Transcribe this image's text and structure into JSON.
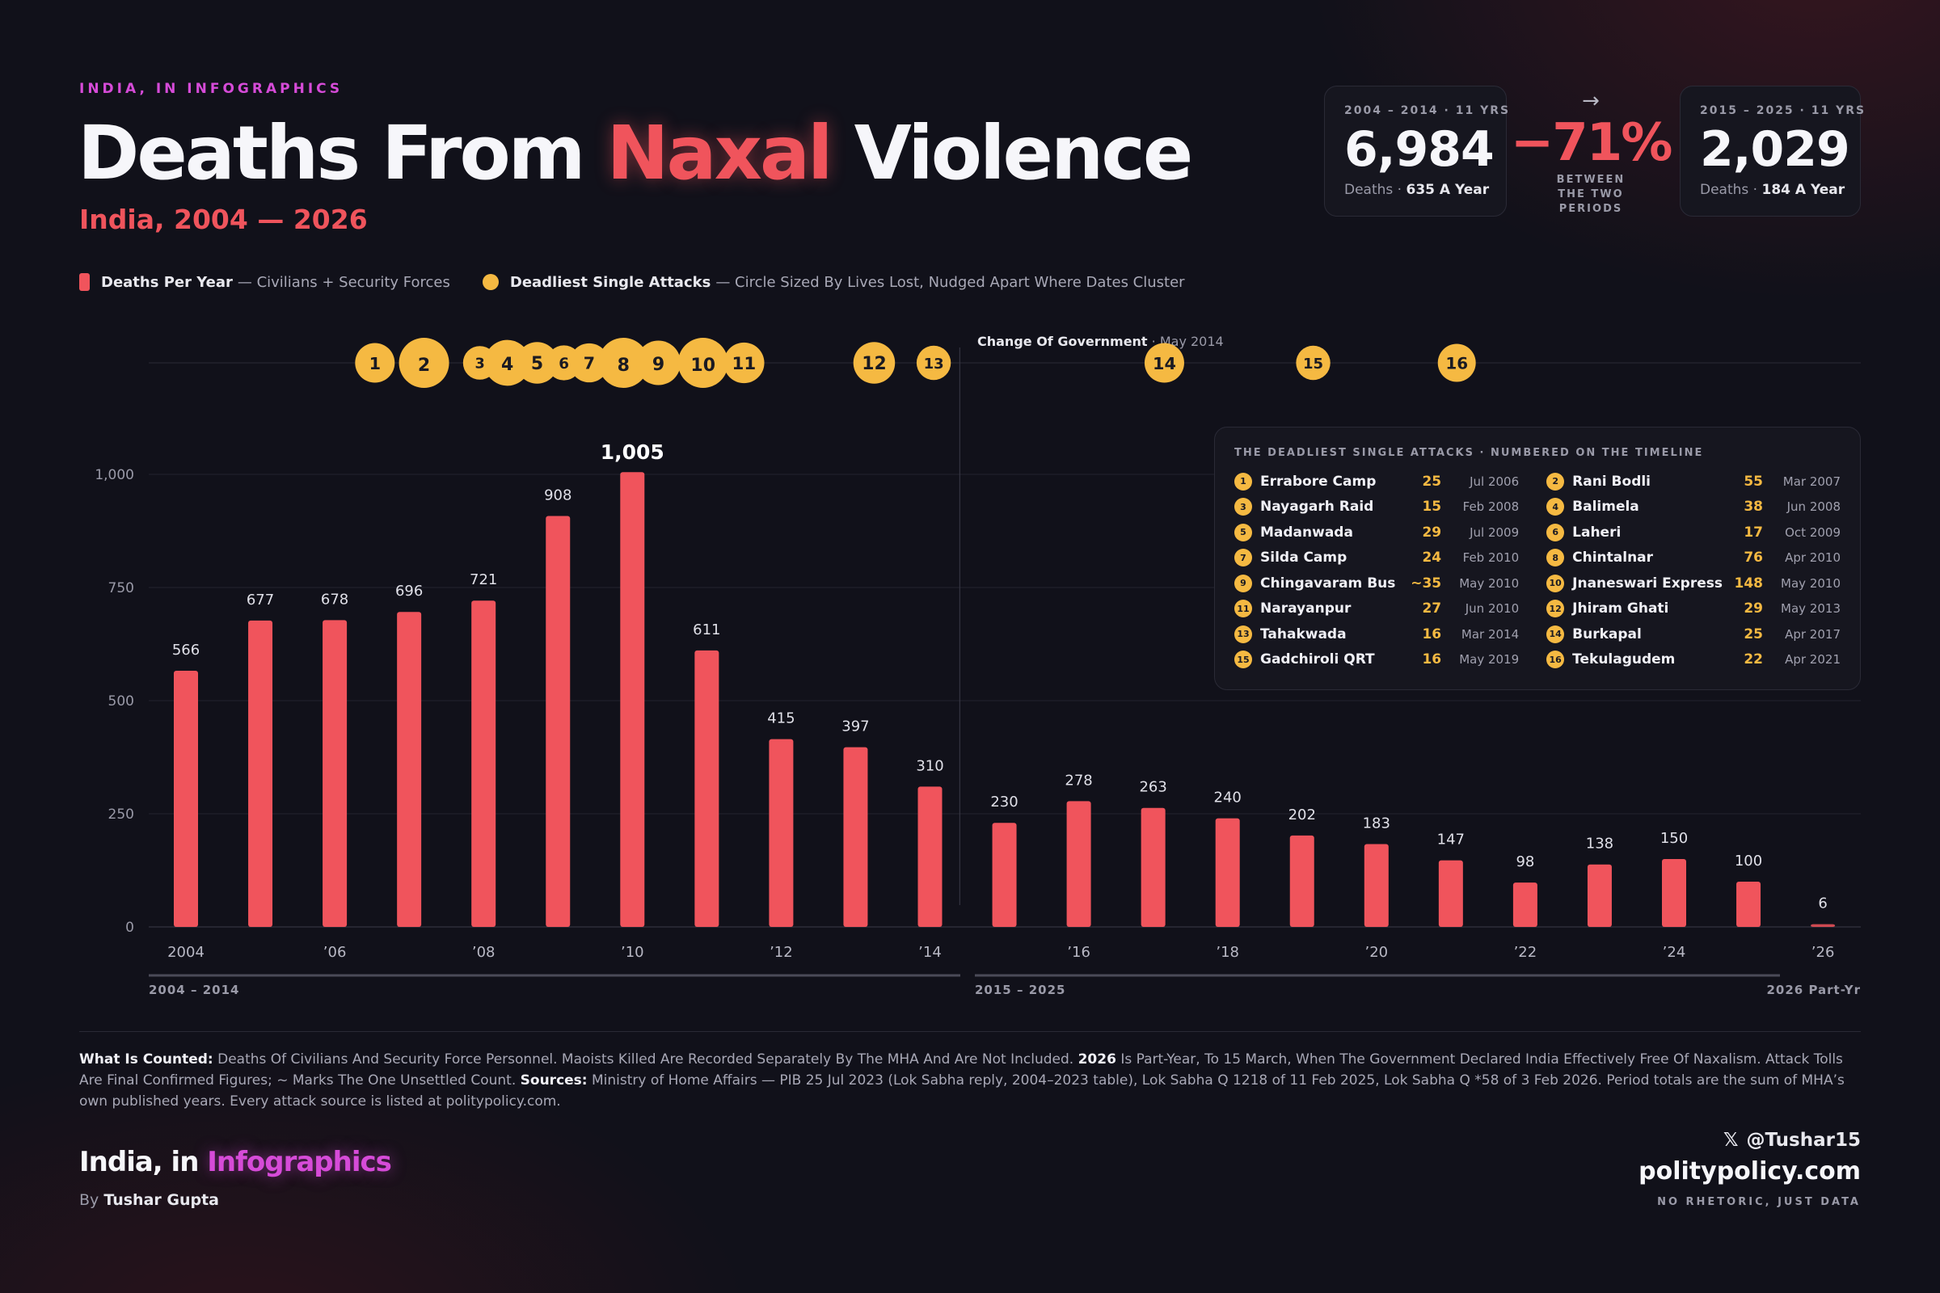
{
  "header": {
    "kicker": "INDIA, IN INFOGRAPHICS",
    "title_pre": "Deaths From ",
    "title_hl": "Naxal",
    "title_post": " Violence",
    "subtitle": "India, 2004 — 2026"
  },
  "stats": {
    "period1": {
      "label": "2004 – 2014 · 11 YRS",
      "value": "6,984",
      "cap_pre": "Deaths · ",
      "cap_bold": "635 A Year"
    },
    "change": {
      "arrow": "→",
      "pct": "−71%",
      "cap": "BETWEEN THE TWO PERIODS"
    },
    "period2": {
      "label": "2015 – 2025 · 11 YRS",
      "value": "2,029",
      "cap_pre": "Deaths · ",
      "cap_bold": "184 A Year"
    }
  },
  "legend": {
    "bars_bold": "Deaths Per Year",
    "bars_text": "— Civilians + Security Forces",
    "circles_bold": "Deadliest Single Attacks",
    "circles_text": "— Circle Sized By Lives Lost, Nudged Apart Where Dates Cluster"
  },
  "chart_data": {
    "type": "bar",
    "title": "Deaths From Naxal Violence",
    "subtitle": "India, 2004 — 2026",
    "categories": [
      "2004",
      "2005",
      "2006",
      "2007",
      "2008",
      "2009",
      "2010",
      "2011",
      "2012",
      "2013",
      "2014",
      "2015",
      "2016",
      "2017",
      "2018",
      "2019",
      "2020",
      "2021",
      "2022",
      "2023",
      "2024",
      "2025",
      "2026"
    ],
    "values": [
      566,
      677,
      678,
      696,
      721,
      908,
      1005,
      611,
      415,
      397,
      310,
      230,
      278,
      263,
      240,
      202,
      183,
      147,
      98,
      138,
      150,
      100,
      6
    ],
    "x_tick_labels": [
      "2004",
      "’06",
      "’08",
      "’10",
      "’12",
      "’14",
      "’16",
      "’18",
      "’20",
      "’22",
      "’24",
      "’26"
    ],
    "x_tick_years": [
      2004,
      2006,
      2008,
      2010,
      2012,
      2014,
      2016,
      2018,
      2020,
      2022,
      2024,
      2026
    ],
    "y_ticks": [
      0,
      250,
      500,
      750,
      "1,000"
    ],
    "ylim": [
      0,
      1000
    ],
    "highlight_max_label": "1,005",
    "grid": true,
    "partial_year": "2026",
    "bar_color": "#f0545c",
    "annotation": {
      "bold": "Change Of Government",
      "text": " · May 2014",
      "at": 2014.4
    },
    "periods": [
      {
        "label": "2004 – 2014",
        "from": 2004,
        "to": 2014
      },
      {
        "label": "2015 – 2025",
        "from": 2015,
        "to": 2025
      },
      {
        "label": "2026 Part-Yr",
        "from": 2026,
        "to": 2026
      }
    ],
    "attacks": [
      {
        "n": 1,
        "name": "Errabore Camp",
        "deaths": 25,
        "count_text": "25",
        "date": "Jul 2006",
        "t": 2006.54
      },
      {
        "n": 2,
        "name": "Rani Bodli",
        "deaths": 55,
        "count_text": "55",
        "date": "Mar 2007",
        "t": 2007.2
      },
      {
        "n": 3,
        "name": "Nayagarh Raid",
        "deaths": 15,
        "count_text": "15",
        "date": "Feb 2008",
        "t": 2007.95
      },
      {
        "n": 4,
        "name": "Balimela",
        "deaths": 38,
        "count_text": "38",
        "date": "Jun 2008",
        "t": 2008.32
      },
      {
        "n": 5,
        "name": "Madanwada",
        "deaths": 29,
        "count_text": "29",
        "date": "Jul 2009",
        "t": 2008.72
      },
      {
        "n": 6,
        "name": "Laheri",
        "deaths": 17,
        "count_text": "17",
        "date": "Oct 2009",
        "t": 2009.08
      },
      {
        "n": 7,
        "name": "Silda Camp",
        "deaths": 24,
        "count_text": "24",
        "date": "Feb 2010",
        "t": 2009.42
      },
      {
        "n": 8,
        "name": "Chintalnar",
        "deaths": 76,
        "count_text": "76",
        "date": "Apr 2010",
        "t": 2009.88
      },
      {
        "n": 9,
        "name": "Chingavaram Bus",
        "deaths": 35,
        "count_text": "~35",
        "date": "May 2010",
        "t": 2010.35
      },
      {
        "n": 10,
        "name": "Jnaneswari Express",
        "deaths": 148,
        "count_text": "148",
        "date": "May 2010",
        "t": 2010.95
      },
      {
        "n": 11,
        "name": "Narayanpur",
        "deaths": 27,
        "count_text": "27",
        "date": "Jun 2010",
        "t": 2011.5
      },
      {
        "n": 12,
        "name": "Jhiram Ghati",
        "deaths": 29,
        "count_text": "29",
        "date": "May 2013",
        "t": 2013.25
      },
      {
        "n": 13,
        "name": "Tahakwada",
        "deaths": 16,
        "count_text": "16",
        "date": "Mar 2014",
        "t": 2014.05
      },
      {
        "n": 14,
        "name": "Burkapal",
        "deaths": 25,
        "count_text": "25",
        "date": "Apr 2017",
        "t": 2017.15
      },
      {
        "n": 15,
        "name": "Gadchiroli QRT",
        "deaths": 16,
        "count_text": "16",
        "date": "May 2019",
        "t": 2019.15
      },
      {
        "n": 16,
        "name": "Tekulagudem",
        "deaths": 22,
        "count_text": "22",
        "date": "Apr 2021",
        "t": 2021.08
      }
    ],
    "attack_color": "#f5b942"
  },
  "attacks_panel": {
    "title": "THE DEADLIEST SINGLE ATTACKS · NUMBERED ON THE TIMELINE"
  },
  "notes": {
    "what_label": "What Is Counted:",
    "what_text": " Deaths Of Civilians And Security Force Personnel. Maoists Killed Are Recorded Separately By The MHA And Are Not Included. ",
    "year_bold": "2026",
    "year_text": " Is Part-Year, To 15 March, When The Government Declared India Effectively Free Of Naxalism. Attack Tolls Are Final Confirmed Figures; ~ Marks The One Unsettled Count. ",
    "sources_label": "Sources:",
    "sources_text": " Ministry of Home Affairs — PIB 25 Jul 2023 (Lok Sabha reply, 2004–2023 table), Lok Sabha Q 1218 of 11 Feb 2025, Lok Sabha Q *58 of 3 Feb 2026. Period totals are the sum of MHA’s own published years. Every attack source is listed at politypolicy.com."
  },
  "footer": {
    "brand_pre": "India, in ",
    "brand_hl": "Infographics",
    "by_pre": "By ",
    "author": "Tushar Gupta",
    "x_icon": "x-logo-icon",
    "handle": "@Tushar15",
    "site": "politypolicy.com",
    "tagline": "NO RHETORIC, JUST DATA"
  }
}
